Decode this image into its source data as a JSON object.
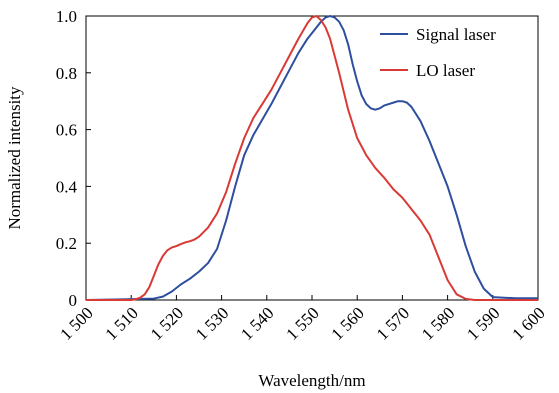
{
  "chart_data": {
    "type": "line",
    "xlabel": "Wavelength/nm",
    "ylabel": "Normalized intensity",
    "xlim": [
      1500,
      1600
    ],
    "ylim": [
      0,
      1.0
    ],
    "x_ticks": [
      1500,
      1510,
      1520,
      1530,
      1540,
      1550,
      1560,
      1570,
      1580,
      1590,
      1600
    ],
    "x_tick_labels": [
      "1 500",
      "1 510",
      "1 520",
      "1 530",
      "1 540",
      "1 550",
      "1 560",
      "1 570",
      "1 580",
      "1 590",
      "1 600"
    ],
    "y_ticks": [
      0,
      0.2,
      0.4,
      0.6,
      0.8,
      1.0
    ],
    "y_tick_labels": [
      "0",
      "0.2",
      "0.4",
      "0.6",
      "0.8",
      "1.0"
    ],
    "legend_position": "top-right",
    "series": [
      {
        "name": "Signal laser",
        "color": "#2e4e9e",
        "x": [
          1500,
          1510,
          1515,
          1517,
          1519,
          1521,
          1523,
          1525,
          1527,
          1529,
          1531,
          1533,
          1535,
          1537,
          1539,
          1541,
          1543,
          1545,
          1547,
          1549,
          1551,
          1552,
          1553,
          1554,
          1555,
          1556,
          1557,
          1558,
          1559,
          1560,
          1561,
          1562,
          1563,
          1564,
          1565,
          1566,
          1567,
          1568,
          1569,
          1570,
          1571,
          1572,
          1574,
          1576,
          1578,
          1580,
          1582,
          1584,
          1586,
          1588,
          1590,
          1595,
          1600
        ],
        "y": [
          0,
          0.003,
          0.005,
          0.012,
          0.03,
          0.055,
          0.075,
          0.1,
          0.13,
          0.18,
          0.28,
          0.4,
          0.51,
          0.58,
          0.635,
          0.69,
          0.75,
          0.81,
          0.87,
          0.92,
          0.96,
          0.98,
          0.995,
          1.0,
          0.995,
          0.98,
          0.95,
          0.9,
          0.83,
          0.77,
          0.72,
          0.69,
          0.675,
          0.67,
          0.675,
          0.685,
          0.69,
          0.695,
          0.7,
          0.7,
          0.695,
          0.68,
          0.63,
          0.56,
          0.48,
          0.4,
          0.3,
          0.19,
          0.1,
          0.04,
          0.01,
          0.006,
          0.006
        ]
      },
      {
        "name": "LO laser",
        "color": "#d93a35",
        "x": [
          1500,
          1510,
          1511,
          1512,
          1513,
          1514,
          1515,
          1516,
          1517,
          1518,
          1519,
          1520,
          1521,
          1522,
          1523,
          1524,
          1525,
          1527,
          1529,
          1531,
          1533,
          1535,
          1537,
          1539,
          1541,
          1543,
          1545,
          1547,
          1549,
          1550,
          1551,
          1552,
          1553,
          1554,
          1556,
          1558,
          1560,
          1562,
          1564,
          1566,
          1568,
          1570,
          1572,
          1574,
          1576,
          1578,
          1580,
          1582,
          1584,
          1586,
          1588,
          1590,
          1600
        ],
        "y": [
          0,
          0.0,
          0.003,
          0.008,
          0.02,
          0.045,
          0.085,
          0.125,
          0.155,
          0.175,
          0.185,
          0.19,
          0.197,
          0.203,
          0.207,
          0.213,
          0.223,
          0.255,
          0.305,
          0.38,
          0.48,
          0.57,
          0.64,
          0.69,
          0.74,
          0.8,
          0.86,
          0.92,
          0.975,
          0.995,
          1.0,
          0.985,
          0.96,
          0.92,
          0.8,
          0.67,
          0.57,
          0.51,
          0.465,
          0.43,
          0.39,
          0.36,
          0.32,
          0.28,
          0.23,
          0.15,
          0.07,
          0.02,
          0.004,
          0.0,
          0.0,
          0.0,
          0.0
        ]
      }
    ]
  }
}
